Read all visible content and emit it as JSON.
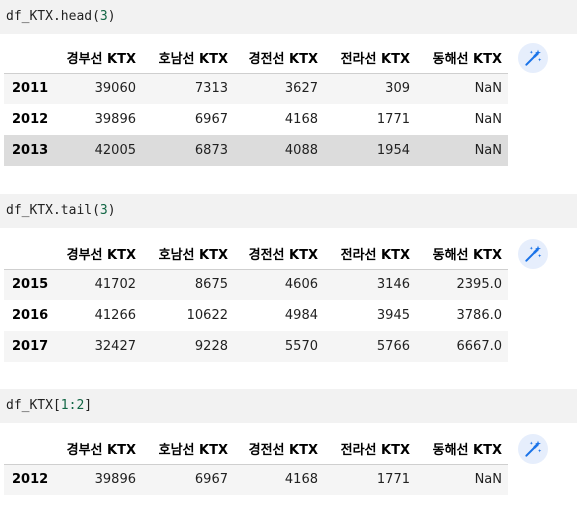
{
  "cells": [
    {
      "code": {
        "prefix": "df_KTX.head(",
        "arg": "3",
        "suffix": ")"
      },
      "table": {
        "columns": [
          "경부선 KTX",
          "호남선 KTX",
          "경전선 KTX",
          "전라선 KTX",
          "동해선 KTX"
        ],
        "rows": [
          {
            "index": "2011",
            "values": [
              "39060",
              "7313",
              "3627",
              "309",
              "NaN"
            ]
          },
          {
            "index": "2012",
            "values": [
              "39896",
              "6967",
              "4168",
              "1771",
              "NaN"
            ]
          },
          {
            "index": "2013",
            "values": [
              "42005",
              "6873",
              "4088",
              "1954",
              "NaN"
            ]
          }
        ]
      }
    },
    {
      "code": {
        "prefix": "df_KTX.tail(",
        "arg": "3",
        "suffix": ")"
      },
      "table": {
        "columns": [
          "경부선 KTX",
          "호남선 KTX",
          "경전선 KTX",
          "전라선 KTX",
          "동해선 KTX"
        ],
        "rows": [
          {
            "index": "2015",
            "values": [
              "41702",
              "8675",
              "4606",
              "3146",
              "2395.0"
            ]
          },
          {
            "index": "2016",
            "values": [
              "41266",
              "10622",
              "4984",
              "3945",
              "3786.0"
            ]
          },
          {
            "index": "2017",
            "values": [
              "32427",
              "9228",
              "5570",
              "5766",
              "6667.0"
            ]
          }
        ]
      }
    },
    {
      "code": {
        "prefix": "df_KTX[",
        "arg": "1:2",
        "suffix": "]"
      },
      "table": {
        "columns": [
          "경부선 KTX",
          "호남선 KTX",
          "경전선 KTX",
          "전라선 KTX",
          "동해선 KTX"
        ],
        "rows": [
          {
            "index": "2012",
            "values": [
              "39896",
              "6967",
              "4168",
              "1771",
              "NaN"
            ]
          }
        ]
      }
    }
  ],
  "icons": {
    "magic": "magic-wand-sparkle-icon"
  },
  "colors": {
    "code_bg": "#f2f2f2",
    "number_literal": "#116644",
    "icon_accent": "#1a73e8",
    "row_hover": "#dcdcdc"
  }
}
